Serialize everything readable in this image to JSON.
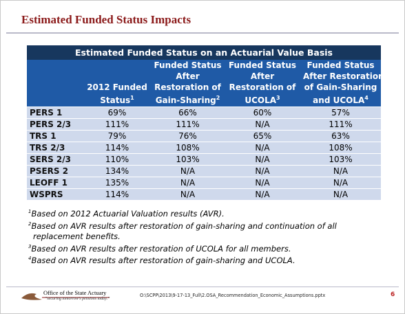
{
  "header": {
    "title": "Estimated Funded Status Impacts"
  },
  "table": {
    "caption": "Estimated Funded Status on an Actuarial Value Basis",
    "columns": [
      {
        "lines": [
          "2012 Funded",
          "Status"
        ],
        "note": "1"
      },
      {
        "lines": [
          "Funded Status",
          "After",
          "Restoration of",
          "Gain-Sharing"
        ],
        "note": "2"
      },
      {
        "lines": [
          "Funded Status",
          "After",
          "Restoration of",
          "UCOLA"
        ],
        "note": "3"
      },
      {
        "lines": [
          "Funded Status",
          "After Restoration",
          "of Gain-Sharing",
          "and UCOLA"
        ],
        "note": "4"
      }
    ],
    "rows": [
      [
        "PERS 1",
        "69%",
        "66%",
        "60%",
        "57%"
      ],
      [
        "PERS 2/3",
        "111%",
        "111%",
        "N/A",
        "111%"
      ],
      [
        "TRS 1",
        "79%",
        "76%",
        "65%",
        "63%"
      ],
      [
        "TRS 2/3",
        "114%",
        "108%",
        "N/A",
        "108%"
      ],
      [
        "SERS 2/3",
        "110%",
        "103%",
        "N/A",
        "103%"
      ],
      [
        "PSERS 2",
        "134%",
        "N/A",
        "N/A",
        "N/A"
      ],
      [
        "LEOFF 1",
        "135%",
        "N/A",
        "N/A",
        "N/A"
      ],
      [
        "WSPRS",
        "114%",
        "N/A",
        "N/A",
        "N/A"
      ]
    ]
  },
  "footnotes": [
    {
      "marker": "1",
      "text": "Based on 2012 Actuarial Valuation results (AVR)."
    },
    {
      "marker": "2",
      "text": "Based on AVR results after restoration of gain-sharing and continuation of all replacement benefits."
    },
    {
      "marker": "3",
      "text": "Based on AVR results after restoration of UCOLA for all members."
    },
    {
      "marker": "4",
      "text": "Based on AVR results after restoration of gain-sharing and UCOLA."
    }
  ],
  "footer": {
    "org": "Office of the State Actuary",
    "tagline": "“securing tomorrow's pensions today.”",
    "path": "O:\\SCPP\\2013\\9-17-13_Full\\2.OSA_Recommendation_Economic_Assumptions.pptx",
    "page": "6"
  }
}
